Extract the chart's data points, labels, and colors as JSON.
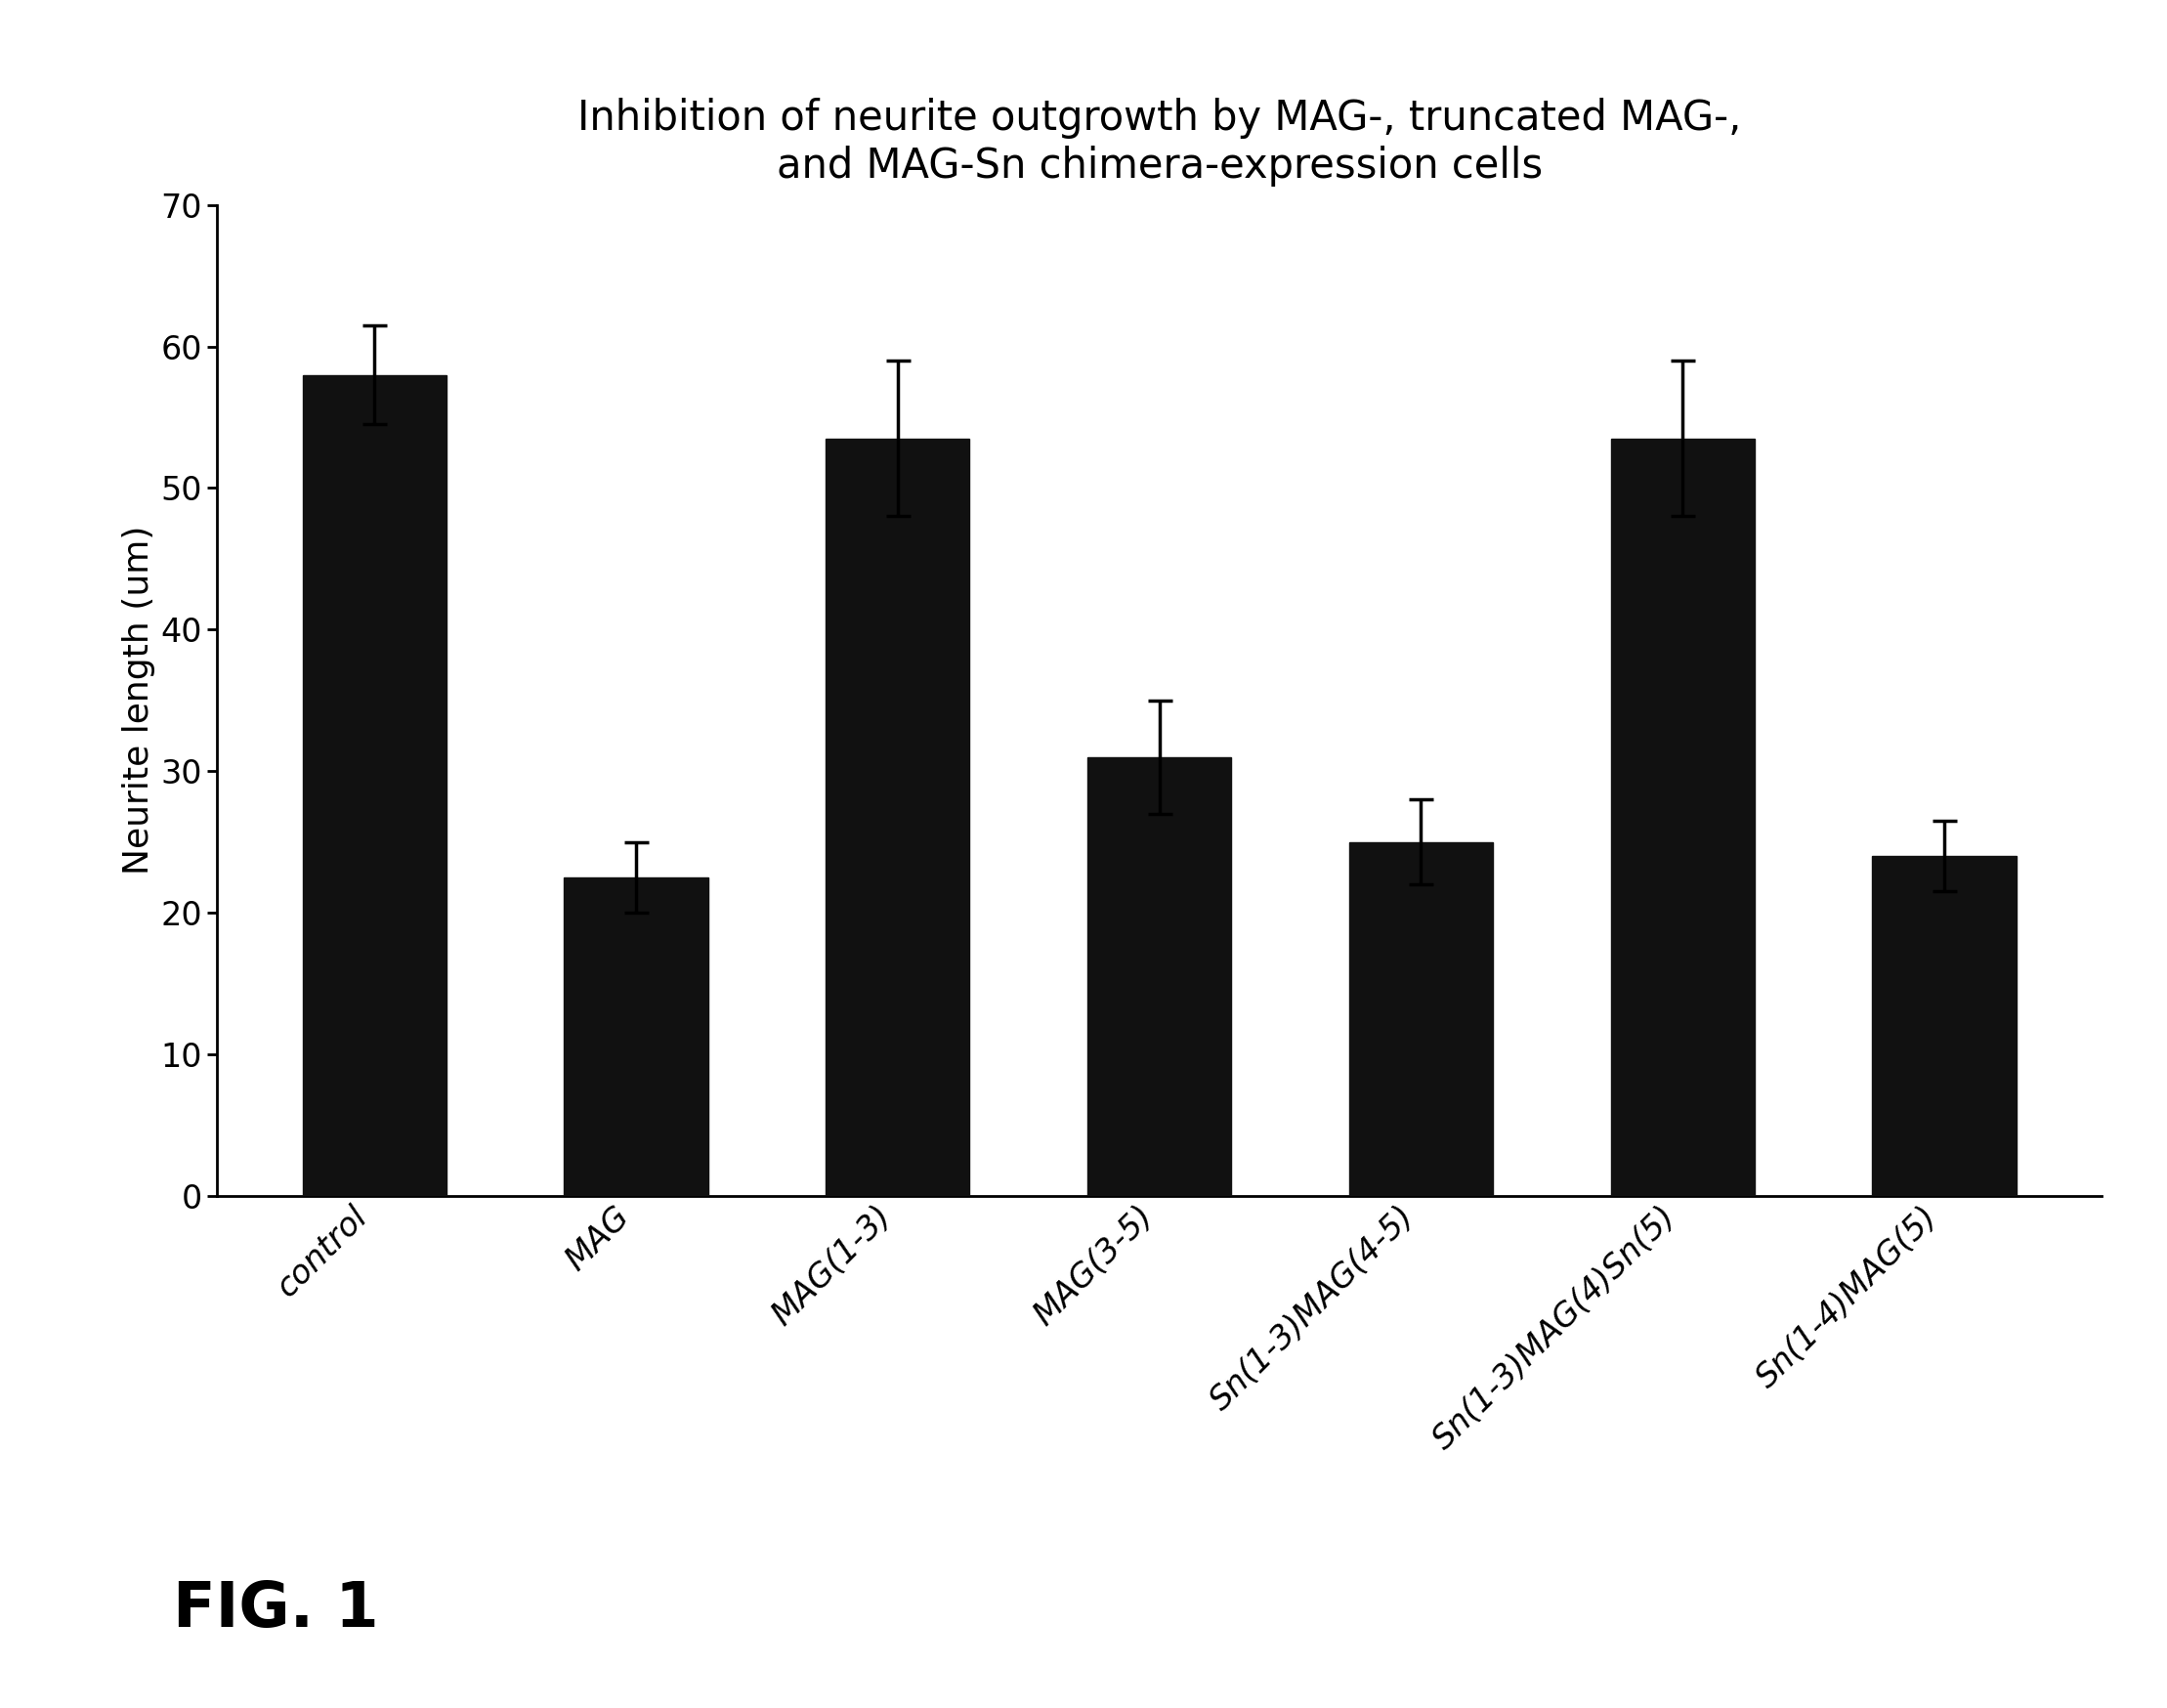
{
  "title": "Inhibition of neurite outgrowth by MAG-, truncated MAG-,\nand MAG-Sn chimera-expression cells",
  "ylabel": "Neurite length (um)",
  "categories": [
    "control",
    "MAG",
    "MAG(1-3)",
    "MAG(3-5)",
    "Sn(1-3)MAG(4-5)",
    "Sn(1-3)MAG(4)Sn(5)",
    "Sn(1-4)MAG(5)"
  ],
  "values": [
    58.0,
    22.5,
    53.5,
    31.0,
    25.0,
    53.5,
    24.0
  ],
  "errors": [
    3.5,
    2.5,
    5.5,
    4.0,
    3.0,
    5.5,
    2.5
  ],
  "bar_color": "#111111",
  "ylim": [
    0,
    70
  ],
  "yticks": [
    0,
    10,
    20,
    30,
    40,
    50,
    60,
    70
  ],
  "fig_label": "FIG. 1",
  "title_fontsize": 30,
  "label_fontsize": 26,
  "tick_fontsize": 24,
  "fig_label_fontsize": 46,
  "background_color": "#ffffff"
}
